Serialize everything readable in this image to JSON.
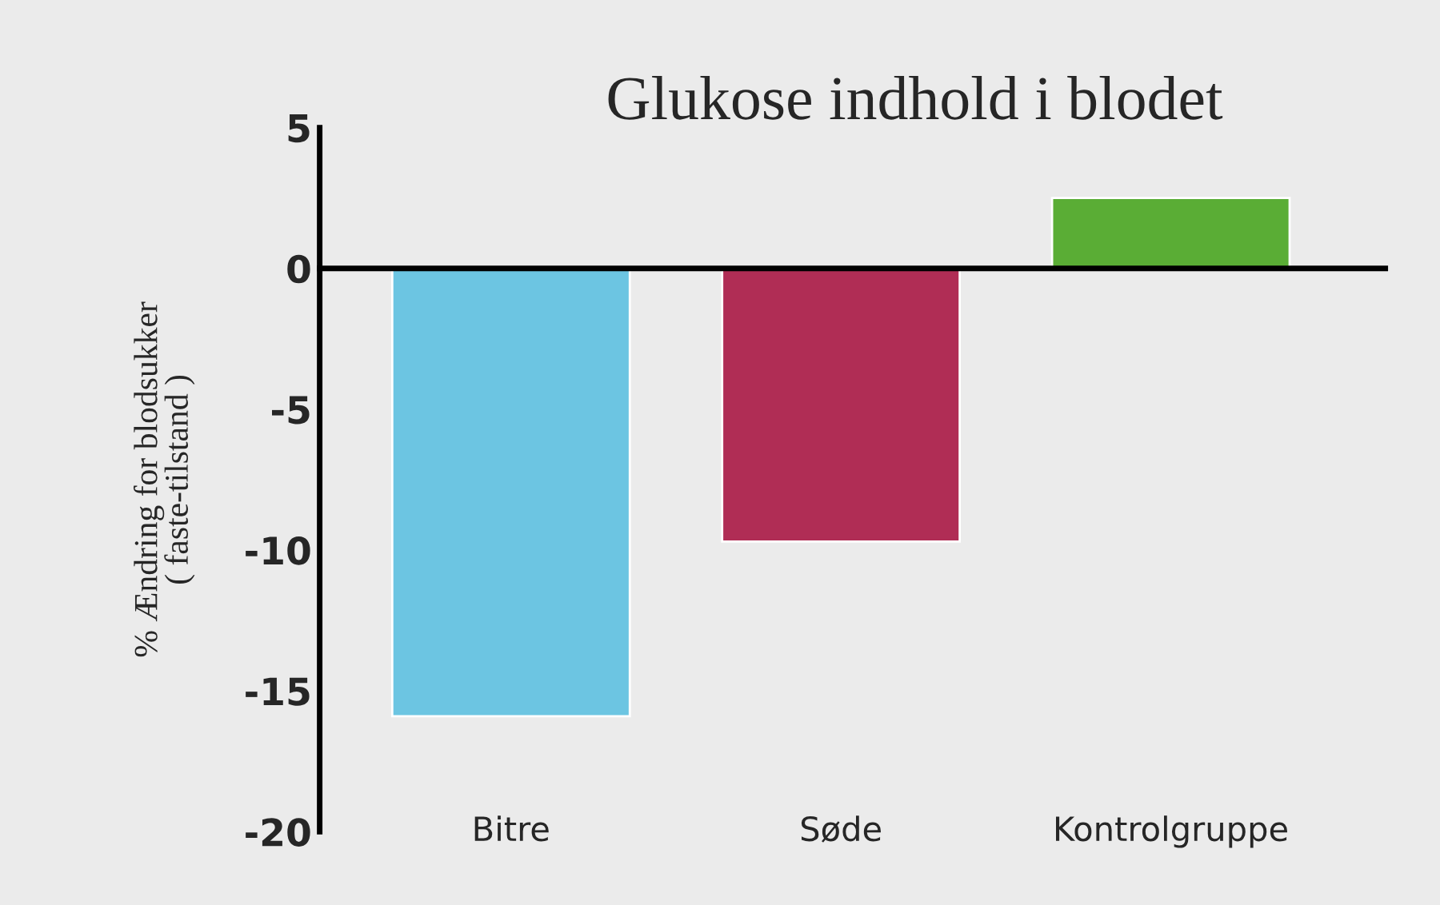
{
  "chart_data": {
    "type": "bar",
    "title": "Glukose indhold i blodet",
    "ylabel": "% Ændring for blodsukker\n( faste-tilstand )",
    "categories": [
      "Bitre",
      "Søde",
      "Kontrolgruppe"
    ],
    "values": [
      -15.9,
      -9.7,
      2.5
    ],
    "colors": [
      "#6cc5e2",
      "#b02d55",
      "#5aad35"
    ],
    "ylim": [
      -20,
      5
    ],
    "yticks": [
      -20,
      -15,
      -10,
      -5,
      0,
      5
    ]
  }
}
